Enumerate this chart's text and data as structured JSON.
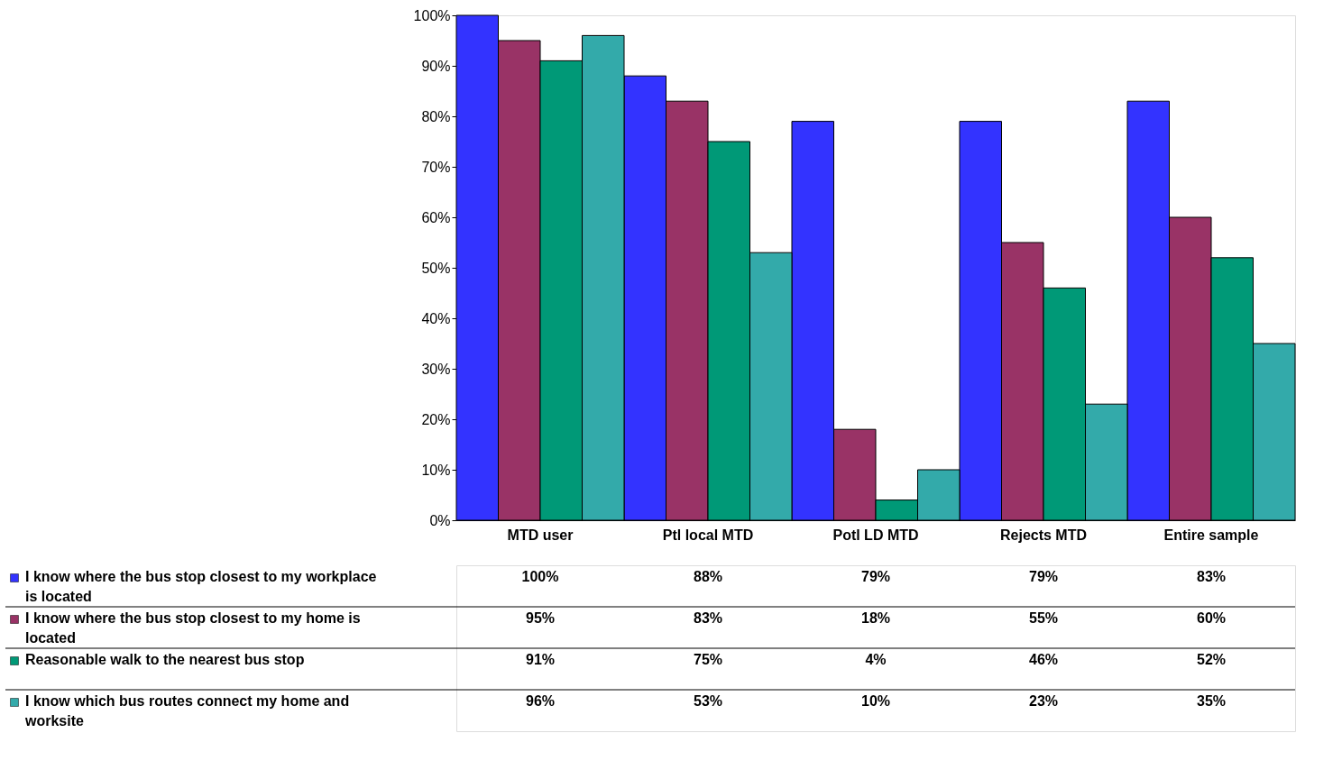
{
  "chart_data": {
    "type": "bar",
    "categories": [
      "MTD user",
      "Ptl local MTD",
      "Potl LD MTD",
      "Rejects MTD",
      "Entire sample"
    ],
    "series": [
      {
        "name": "I know where the bus stop closest to my workplace is located",
        "color": "#3333ff",
        "values": [
          100,
          88,
          79,
          79,
          83
        ],
        "value_labels": [
          "100%",
          "88%",
          "79%",
          "79%",
          "83%"
        ]
      },
      {
        "name": "I know where the bus stop closest to my home is located",
        "color": "#993366",
        "values": [
          95,
          83,
          18,
          55,
          60
        ],
        "value_labels": [
          "95%",
          "83%",
          "18%",
          "55%",
          "60%"
        ]
      },
      {
        "name": "Reasonable walk to the nearest bus stop",
        "color": "#009977",
        "values": [
          91,
          75,
          4,
          46,
          52
        ],
        "value_labels": [
          "91%",
          "75%",
          "4%",
          "46%",
          "52%"
        ]
      },
      {
        "name": "I know which bus routes connect my home and worksite",
        "color": "#33aaaa",
        "values": [
          96,
          53,
          10,
          23,
          35
        ],
        "value_labels": [
          "96%",
          "53%",
          "10%",
          "23%",
          "35%"
        ]
      }
    ],
    "ylim": [
      0,
      100
    ],
    "yticks": [
      {
        "value": 0,
        "label": "0%"
      },
      {
        "value": 10,
        "label": "10%"
      },
      {
        "value": 20,
        "label": "20%"
      },
      {
        "value": 30,
        "label": "30%"
      },
      {
        "value": 40,
        "label": "40%"
      },
      {
        "value": 50,
        "label": "50%"
      },
      {
        "value": 60,
        "label": "60%"
      },
      {
        "value": 70,
        "label": "70%"
      },
      {
        "value": 80,
        "label": "80%"
      },
      {
        "value": 90,
        "label": "90%"
      },
      {
        "value": 100,
        "label": "100%"
      }
    ],
    "grid": false,
    "legend": "bottom"
  }
}
